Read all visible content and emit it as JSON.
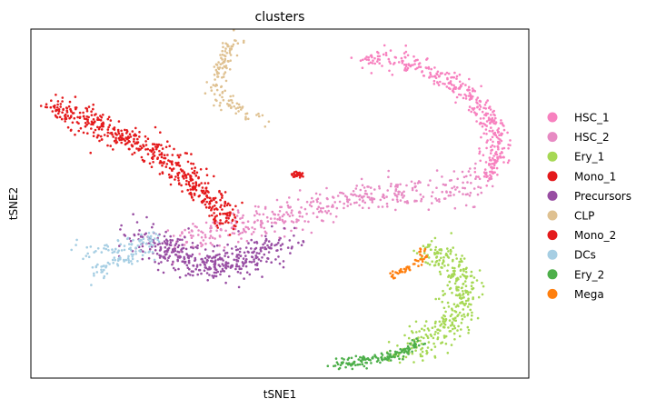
{
  "chart_data": {
    "type": "scatter",
    "title": "clusters",
    "xlabel": "tSNE1",
    "ylabel": "tSNE2",
    "xlim": [
      0,
      100
    ],
    "ylim": [
      0,
      100
    ],
    "ticks": false,
    "grid": false,
    "legend": "right",
    "series": [
      {
        "name": "HSC_1",
        "color": "#f781bf",
        "spread": 1.4,
        "n": 380,
        "path": [
          [
            68,
            91.5
          ],
          [
            71,
            91.2
          ],
          [
            74,
            91
          ],
          [
            79,
            88.8
          ],
          [
            84,
            85
          ],
          [
            89,
            79.9
          ],
          [
            92,
            74.7
          ],
          [
            93.5,
            68.5
          ],
          [
            93,
            61.9
          ],
          [
            91.5,
            56.7
          ]
        ]
      },
      {
        "name": "HSC_2",
        "color": "#e78ac3",
        "spread": 2.2,
        "n": 430,
        "path": [
          [
            91.5,
            56.7
          ],
          [
            88,
            55.5
          ],
          [
            83,
            54
          ],
          [
            78,
            53
          ],
          [
            73,
            52.7
          ],
          [
            68,
            52.2
          ],
          [
            63,
            50.8
          ],
          [
            58,
            48.6
          ],
          [
            52,
            47.4
          ],
          [
            46,
            45
          ],
          [
            40,
            41.8
          ],
          [
            34,
            40.8
          ],
          [
            30,
            38.4
          ]
        ]
      },
      {
        "name": "Ery_1",
        "color": "#a6d854",
        "spread": 2.0,
        "n": 360,
        "path": [
          [
            79,
            36.6
          ],
          [
            82,
            35.4
          ],
          [
            84.5,
            33.3
          ],
          [
            86,
            30.7
          ],
          [
            87,
            27.5
          ],
          [
            86.5,
            23
          ],
          [
            85,
            18.5
          ],
          [
            83,
            14.6
          ],
          [
            80,
            11.7
          ],
          [
            77,
            9.1
          ],
          [
            73.5,
            6.5
          ]
        ]
      },
      {
        "name": "Mono_1",
        "color": "#e41a1c",
        "spread": 1.8,
        "n": 520,
        "path": [
          [
            5,
            77.9
          ],
          [
            10,
            74.7
          ],
          [
            15,
            71.5
          ],
          [
            20,
            67.9
          ],
          [
            25,
            64.6
          ],
          [
            29,
            60.8
          ],
          [
            32,
            57
          ],
          [
            35,
            52.4
          ],
          [
            38,
            48.1
          ],
          [
            40,
            45.2
          ]
        ]
      },
      {
        "name": "Precursors",
        "color": "#984ea3",
        "spread": 2.6,
        "n": 420,
        "path": [
          [
            22,
            41.3
          ],
          [
            27,
            37
          ],
          [
            32,
            33.8
          ],
          [
            37,
            32.6
          ],
          [
            42,
            32.9
          ],
          [
            46,
            35.1
          ],
          [
            50,
            38.4
          ]
        ]
      },
      {
        "name": "CLP",
        "color": "#dfc191",
        "spread": 1.0,
        "n": 130,
        "path": [
          [
            41.4,
            97
          ],
          [
            40.3,
            95
          ],
          [
            38.8,
            91.8
          ],
          [
            37.8,
            88
          ],
          [
            37.3,
            84.1
          ],
          [
            37.8,
            81
          ],
          [
            40,
            78.3
          ],
          [
            42.2,
            76.6
          ],
          [
            45.5,
            74.2
          ]
        ]
      },
      {
        "name": "Mono_2",
        "color": "#e41a1c",
        "spread": 0.4,
        "n": 30,
        "path": [
          [
            53,
            58.4
          ],
          [
            54.2,
            58.1
          ],
          [
            53.8,
            57.8
          ]
        ]
      },
      {
        "name": "DCs",
        "color": "#a6cee3",
        "spread": 1.2,
        "n": 130,
        "path": [
          [
            10,
            37.2
          ],
          [
            14,
            36.2
          ],
          [
            18,
            37.5
          ],
          [
            22,
            39.2
          ],
          [
            25,
            40.5
          ],
          [
            22,
            36.9
          ],
          [
            18,
            33.4
          ],
          [
            14,
            31.5
          ],
          [
            13,
            29.9
          ]
        ]
      },
      {
        "name": "Ery_2",
        "color": "#4daf4a",
        "spread": 0.7,
        "n": 150,
        "path": [
          [
            61.5,
            4.1
          ],
          [
            65,
            4.5
          ],
          [
            69,
            5.5
          ],
          [
            73.5,
            6.5
          ],
          [
            76,
            8.5
          ],
          [
            78,
            10.6
          ]
        ]
      },
      {
        "name": "Mega",
        "color": "#ff7f0e",
        "spread": 0.5,
        "n": 50,
        "path": [
          [
            72.5,
            29.6
          ],
          [
            75,
            31.2
          ],
          [
            77,
            32.5
          ],
          [
            78.5,
            33.8
          ],
          [
            79,
            36.2
          ],
          [
            78,
            36.9
          ]
        ]
      }
    ]
  }
}
